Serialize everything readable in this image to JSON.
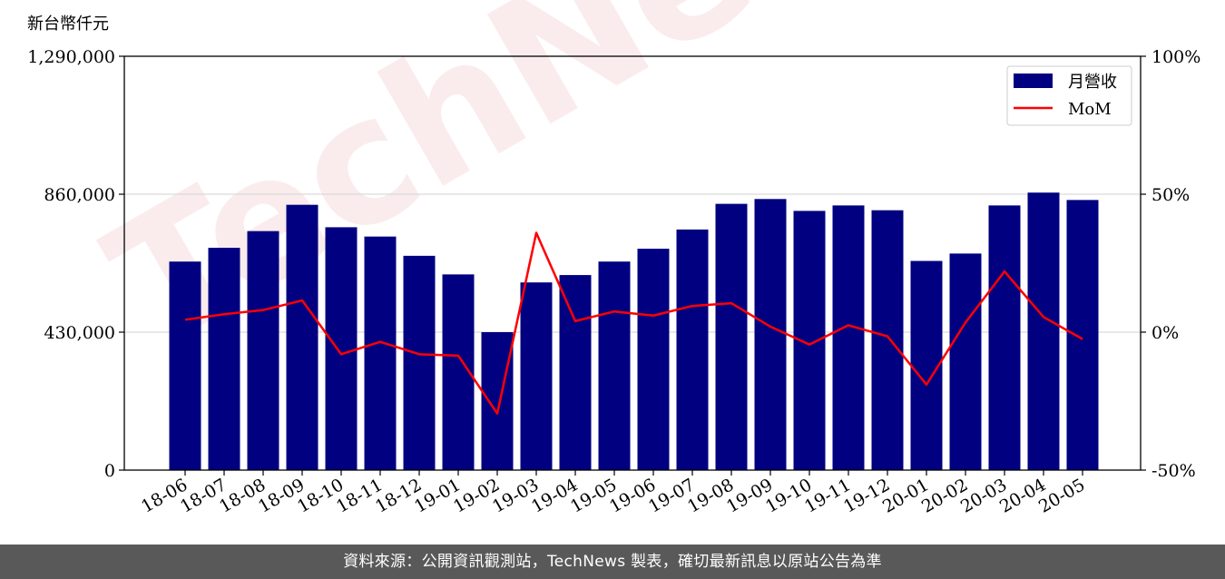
{
  "chart_data": {
    "type": "bar",
    "unit_label": "新台幣仟元",
    "categories": [
      "18-06",
      "18-07",
      "18-08",
      "18-09",
      "18-10",
      "18-11",
      "18-12",
      "19-01",
      "19-02",
      "19-03",
      "19-04",
      "19-05",
      "19-06",
      "19-07",
      "19-08",
      "19-09",
      "19-10",
      "19-11",
      "19-12",
      "20-01",
      "20-02",
      "20-03",
      "20-04",
      "20-05"
    ],
    "series": [
      {
        "name": "月營收",
        "type": "bar",
        "axis": "left",
        "color": "#000080",
        "values": [
          650000,
          693000,
          745000,
          827000,
          757000,
          728000,
          668000,
          610000,
          430000,
          585000,
          608000,
          650000,
          690000,
          750000,
          830000,
          845000,
          808000,
          825000,
          810000,
          652000,
          675000,
          825000,
          865000,
          842000
        ]
      },
      {
        "name": "MoM",
        "type": "line",
        "axis": "right",
        "color": "#ff0000",
        "values": [
          4.5,
          6.5,
          8,
          11.5,
          -8,
          -3.5,
          -8,
          -8.5,
          -29.5,
          36,
          4,
          7.5,
          6,
          9.5,
          10.5,
          2,
          -4.5,
          2.5,
          -1.5,
          -19,
          3.5,
          22,
          5.5,
          -2.5
        ]
      }
    ],
    "y_left": {
      "ticks": [
        "0",
        "430,000",
        "860,000",
        "1,290,000"
      ],
      "ylim": [
        0,
        1290000
      ]
    },
    "y_right": {
      "ticks": [
        "-50%",
        "0%",
        "50%",
        "100%"
      ],
      "ylim": [
        -50,
        100
      ]
    },
    "grid": "horizontal",
    "legend_position": "top-right"
  },
  "watermark": "TechNews",
  "footer": {
    "source_text": "資料來源：公開資訊觀測站，TechNews 製表，確切最新訊息以原站公告為準"
  }
}
